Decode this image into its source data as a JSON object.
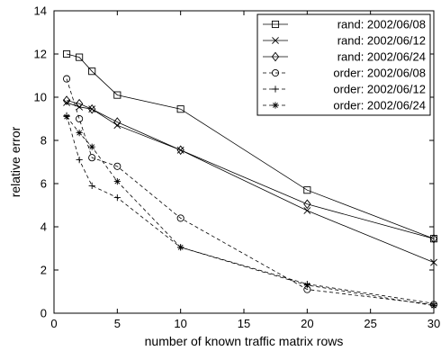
{
  "chart_data": {
    "type": "line",
    "title": "",
    "xlabel": "number of known traffic matrix rows",
    "ylabel": "relative error",
    "xlim": [
      0,
      30
    ],
    "ylim": [
      0,
      14
    ],
    "xticks": [
      0,
      5,
      10,
      15,
      20,
      25,
      30
    ],
    "yticks": [
      0,
      2,
      4,
      6,
      8,
      10,
      12,
      14
    ],
    "grid": false,
    "legend_position": "top-right",
    "series": [
      {
        "name": "rand: 2002/06/08",
        "marker": "square",
        "linestyle": "solid",
        "x": [
          1,
          2,
          3,
          5,
          10,
          20,
          30
        ],
        "y": [
          12.0,
          11.85,
          11.2,
          10.1,
          9.45,
          5.7,
          3.45
        ]
      },
      {
        "name": "rand: 2002/06/12",
        "marker": "x",
        "linestyle": "solid",
        "x": [
          1,
          2,
          3,
          5,
          10,
          20,
          30
        ],
        "y": [
          9.75,
          9.55,
          9.45,
          8.7,
          7.55,
          4.75,
          2.35
        ]
      },
      {
        "name": "rand: 2002/06/24",
        "marker": "diamond",
        "linestyle": "solid",
        "x": [
          1,
          2,
          3,
          5,
          10,
          20,
          30
        ],
        "y": [
          9.85,
          9.7,
          9.45,
          8.85,
          7.55,
          5.05,
          3.45
        ]
      },
      {
        "name": "order: 2002/06/08",
        "marker": "circle",
        "linestyle": "dashed",
        "x": [
          1,
          2,
          3,
          5,
          10,
          20,
          30
        ],
        "y": [
          10.85,
          9.0,
          7.2,
          6.8,
          4.4,
          1.1,
          0.4
        ]
      },
      {
        "name": "order: 2002/06/12",
        "marker": "plus",
        "linestyle": "dashed",
        "x": [
          1,
          2,
          3,
          5,
          10,
          20,
          30
        ],
        "y": [
          9.15,
          7.1,
          5.9,
          5.35,
          3.05,
          1.35,
          0.45
        ]
      },
      {
        "name": "order: 2002/06/24",
        "marker": "star",
        "linestyle": "dashed",
        "x": [
          1,
          2,
          3,
          5,
          10,
          20,
          30
        ],
        "y": [
          9.1,
          8.35,
          7.7,
          6.1,
          3.05,
          1.3,
          0.35
        ]
      }
    ]
  }
}
